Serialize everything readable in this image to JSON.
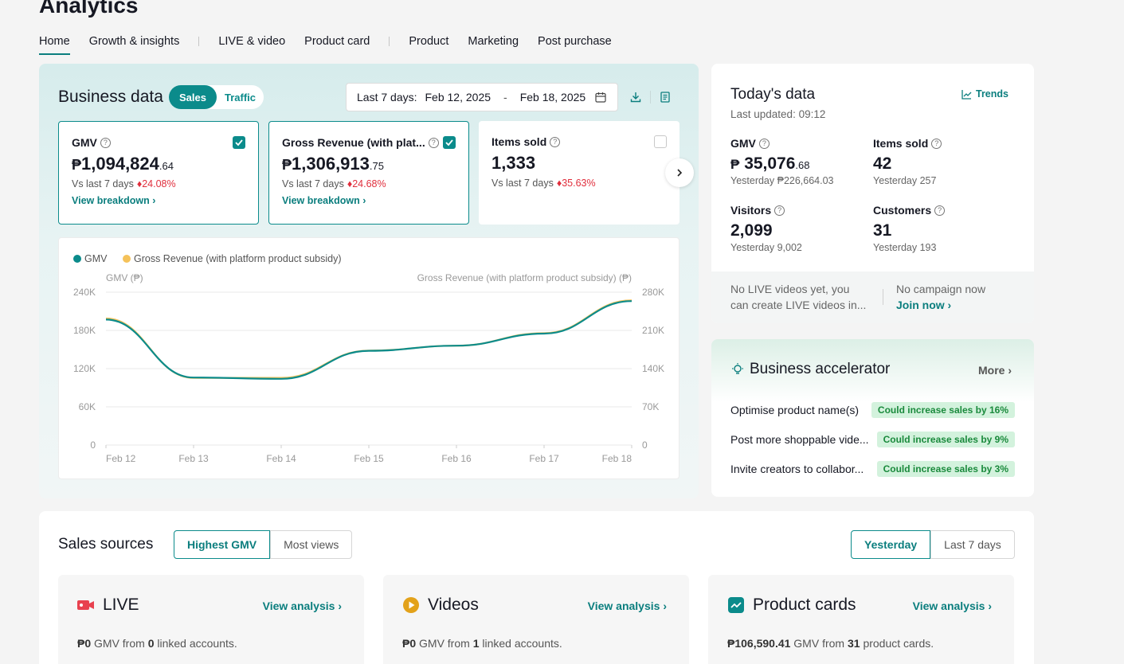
{
  "page": {
    "title": "Analytics"
  },
  "nav": {
    "tabs": [
      "Home",
      "Growth & insights",
      "LIVE & video",
      "Product card",
      "Product",
      "Marketing",
      "Post purchase"
    ]
  },
  "business_data": {
    "title": "Business data",
    "toggle": {
      "sales": "Sales",
      "traffic": "Traffic"
    },
    "date": {
      "prefix": "Last 7 days:",
      "start": "Feb 12, 2025",
      "sep": "-",
      "end": "Feb 18, 2025"
    },
    "metrics": [
      {
        "label": "GMV",
        "currency": "₱",
        "value": "1,094,824",
        "cents": ".64",
        "vs": "Vs last 7 days",
        "change": "24.08%",
        "link": "View breakdown",
        "checked": true
      },
      {
        "label": "Gross Revenue (with plat...",
        "currency": "₱",
        "value": "1,306,913",
        "cents": ".75",
        "vs": "Vs last 7 days",
        "change": "24.68%",
        "link": "View breakdown",
        "checked": true
      },
      {
        "label": "Items sold",
        "currency": "",
        "value": "1,333",
        "cents": "",
        "vs": "Vs last 7 days",
        "change": "35.63%",
        "link": "",
        "checked": false
      }
    ]
  },
  "chart_data": {
    "type": "line",
    "x": [
      "Feb 12",
      "Feb 13",
      "Feb 14",
      "Feb 15",
      "Feb 16",
      "Feb 17",
      "Feb 18"
    ],
    "series": [
      {
        "name": "GMV",
        "color": "#0b8b8b",
        "axis": "left",
        "values": [
          197000,
          106000,
          104000,
          148000,
          156000,
          175000,
          226000
        ]
      },
      {
        "name": "Gross Revenue (with platform product subsidy)",
        "color": "#f5c25a",
        "axis": "right",
        "values": [
          232000,
          123000,
          123000,
          173000,
          182000,
          205000,
          265000
        ]
      }
    ],
    "left_axis": {
      "label": "GMV (₱)",
      "ticks": [
        "240K",
        "180K",
        "120K",
        "60K",
        "0"
      ],
      "ylim": [
        0,
        240000
      ]
    },
    "right_axis": {
      "label": "Gross Revenue (with platform product subsidy) (₱)",
      "ticks": [
        "280K",
        "210K",
        "140K",
        "70K",
        "0"
      ],
      "ylim": [
        0,
        280000
      ]
    },
    "grid": true,
    "legend": "top-left"
  },
  "today": {
    "title": "Today's data",
    "updated": "Last updated: 09:12",
    "trends": "Trends",
    "metrics": [
      {
        "label": "GMV",
        "currency": "₱",
        "value": "35,076",
        "cents": ".68",
        "sub": "Yesterday ₱226,664.03"
      },
      {
        "label": "Items sold",
        "currency": "",
        "value": "42",
        "cents": "",
        "sub": "Yesterday 257"
      },
      {
        "label": "Visitors",
        "currency": "",
        "value": "2,099",
        "cents": "",
        "sub": "Yesterday 9,002"
      },
      {
        "label": "Customers",
        "currency": "",
        "value": "31",
        "cents": "",
        "sub": "Yesterday 193"
      }
    ],
    "footer": {
      "live_text": "No LIVE videos yet, you can create LIVE videos in...",
      "campaign_text": "No campaign now",
      "join": "Join now"
    }
  },
  "accelerator": {
    "title": "Business accelerator",
    "more": "More",
    "items": [
      {
        "label": "Optimise product name(s)",
        "badge": "Could increase sales by 16%"
      },
      {
        "label": "Post more shoppable vide...",
        "badge": "Could increase sales by 9%"
      },
      {
        "label": "Invite creators to collabor...",
        "badge": "Could increase sales by 3%"
      }
    ]
  },
  "sources": {
    "title": "Sales sources",
    "sort": {
      "highest": "Highest GMV",
      "views": "Most views"
    },
    "period": {
      "yesterday": "Yesterday",
      "last7": "Last 7 days"
    },
    "cards": [
      {
        "title": "LIVE",
        "link": "View analysis",
        "amount": "₱0",
        "mid": "GMV from",
        "count": "0",
        "tail": "linked accounts."
      },
      {
        "title": "Videos",
        "link": "View analysis",
        "amount": "₱0",
        "mid": "GMV from",
        "count": "1",
        "tail": "linked accounts."
      },
      {
        "title": "Product cards",
        "link": "View analysis",
        "amount": "₱106,590.41",
        "mid": "GMV from",
        "count": "31",
        "tail": "product cards."
      }
    ]
  }
}
